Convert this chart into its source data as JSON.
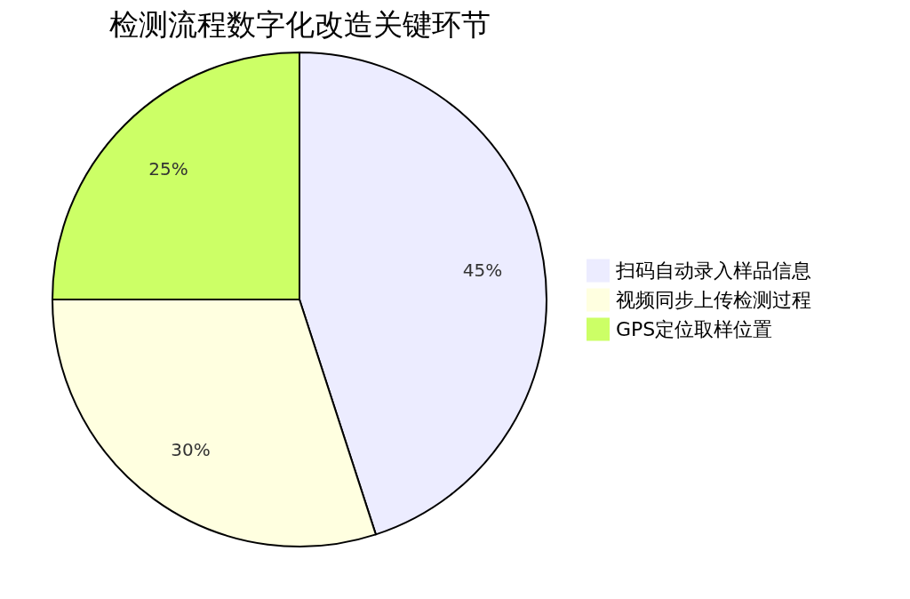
{
  "chart_data": {
    "type": "pie",
    "title": "检测流程数字化改造关键环节",
    "categories": [
      "扫码自动录入样品信息",
      "视频同步上传检测过程",
      "GPS定位取样位置"
    ],
    "values": [
      45,
      30,
      25
    ],
    "colors": [
      "#ececff",
      "#ffffe0",
      "#ccff66"
    ],
    "value_labels": [
      "45%",
      "30%",
      "25%"
    ],
    "legend": "right"
  }
}
